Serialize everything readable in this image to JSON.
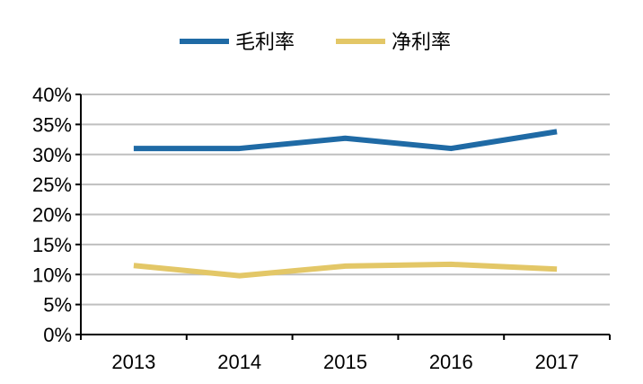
{
  "chart_data": {
    "type": "line",
    "categories": [
      "2013",
      "2014",
      "2015",
      "2016",
      "2017"
    ],
    "series": [
      {
        "name": "毛利率",
        "values": [
          31.0,
          31.0,
          32.7,
          31.0,
          33.8
        ],
        "color": "#1f6aa5"
      },
      {
        "name": "净利率",
        "values": [
          11.5,
          9.8,
          11.4,
          11.7,
          10.9
        ],
        "color": "#e3c767"
      }
    ],
    "ylim": [
      0,
      40
    ],
    "yticks": [
      0,
      5,
      10,
      15,
      20,
      25,
      30,
      35,
      40
    ],
    "ytick_labels": [
      "0%",
      "5%",
      "10%",
      "15%",
      "20%",
      "25%",
      "30%",
      "35%",
      "40%"
    ],
    "grid": true,
    "legend_position": "top"
  }
}
